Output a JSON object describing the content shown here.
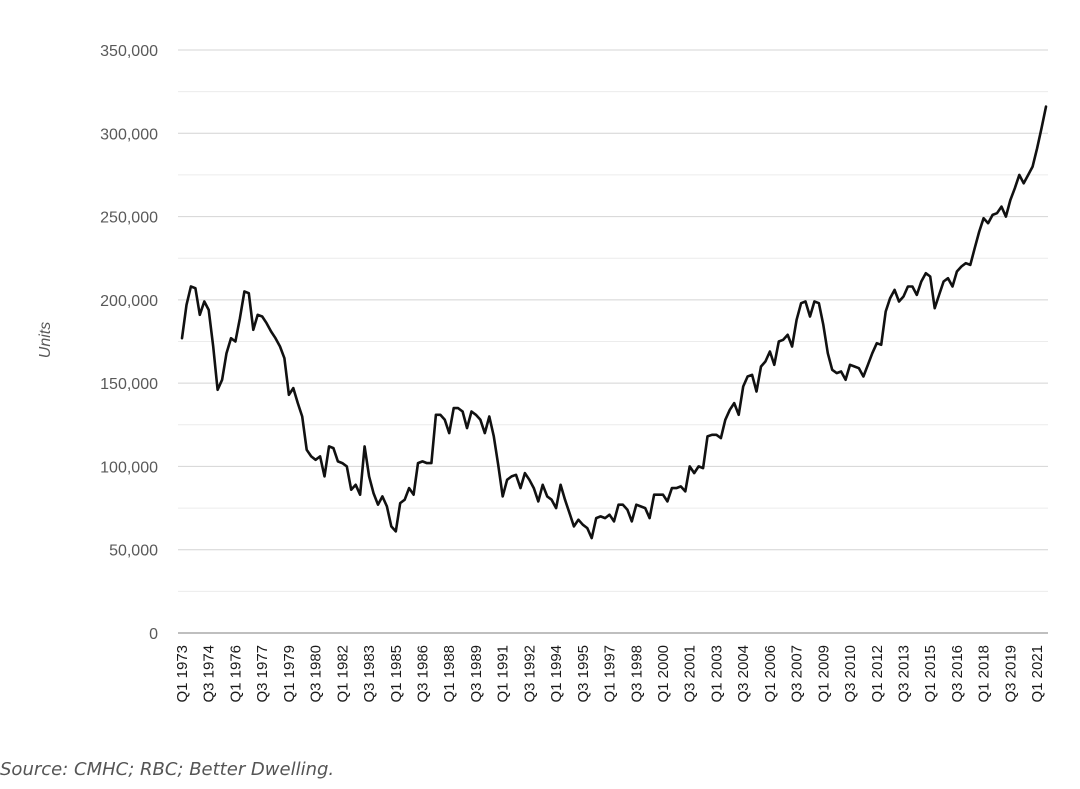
{
  "chart_data": {
    "type": "line",
    "ylabel": "Units",
    "xlabel": "",
    "title": "",
    "ylim": [
      0,
      350000
    ],
    "yticks": [
      0,
      50000,
      100000,
      150000,
      200000,
      250000,
      300000,
      350000
    ],
    "ytick_labels": [
      "0",
      "50,000",
      "100,000",
      "150,000",
      "200,000",
      "250,000",
      "300,000",
      "350,000"
    ],
    "minor_gridlines": true,
    "grid": true,
    "legend": "none",
    "line_color": "#111111",
    "x_tick_labels": [
      "Q1 1973",
      "Q3 1974",
      "Q1 1976",
      "Q3 1977",
      "Q1 1979",
      "Q3 1980",
      "Q1 1982",
      "Q3 1983",
      "Q1 1985",
      "Q3 1986",
      "Q1 1988",
      "Q3 1989",
      "Q1 1991",
      "Q3 1992",
      "Q1 1994",
      "Q3 1995",
      "Q1 1997",
      "Q3 1998",
      "Q1 2000",
      "Q3 2001",
      "Q1 2003",
      "Q3 2004",
      "Q1 2006",
      "Q3 2007",
      "Q1 2009",
      "Q3 2010",
      "Q1 2012",
      "Q3 2013",
      "Q1 2015",
      "Q3 2016",
      "Q1 2018",
      "Q3 2019",
      "Q1 2021"
    ],
    "x_tick_quarter_index": [
      0,
      6,
      12,
      18,
      24,
      30,
      36,
      42,
      48,
      54,
      60,
      66,
      72,
      78,
      84,
      90,
      96,
      102,
      108,
      114,
      120,
      126,
      132,
      138,
      144,
      150,
      156,
      162,
      168,
      174,
      180,
      186,
      192
    ],
    "x_start": "Q1 1973",
    "values": [
      177000,
      197000,
      208000,
      207000,
      191000,
      199000,
      194000,
      172000,
      146000,
      152000,
      168000,
      177000,
      175000,
      189000,
      205000,
      204000,
      182000,
      191000,
      190000,
      186000,
      181000,
      177000,
      172000,
      165000,
      143000,
      147000,
      138000,
      130000,
      110000,
      106000,
      104000,
      106000,
      94000,
      112000,
      111000,
      103000,
      102000,
      100000,
      86000,
      89000,
      83000,
      112000,
      94000,
      84000,
      77000,
      82000,
      76000,
      64000,
      61000,
      78000,
      80000,
      87000,
      83000,
      102000,
      103000,
      102000,
      102000,
      131000,
      131000,
      128000,
      120000,
      135000,
      135000,
      133000,
      123000,
      133000,
      131000,
      128000,
      120000,
      130000,
      118000,
      101000,
      82000,
      92000,
      94000,
      95000,
      87000,
      96000,
      92000,
      87000,
      79000,
      89000,
      82000,
      80000,
      75000,
      89000,
      80000,
      72000,
      64000,
      68000,
      65000,
      63000,
      57000,
      69000,
      70000,
      69000,
      71000,
      67000,
      77000,
      77000,
      74000,
      67000,
      77000,
      76000,
      75000,
      69000,
      83000,
      83000,
      83000,
      79000,
      87000,
      87000,
      88000,
      85000,
      100000,
      96000,
      100000,
      99000,
      118000,
      119000,
      119000,
      117000,
      128000,
      134000,
      138000,
      131000,
      148000,
      154000,
      155000,
      145000,
      160000,
      163000,
      169000,
      161000,
      175000,
      176000,
      179000,
      172000,
      188000,
      198000,
      199000,
      190000,
      199000,
      198000,
      185000,
      168000,
      158000,
      156000,
      157000,
      152000,
      161000,
      160000,
      159000,
      154000,
      161000,
      168000,
      174000,
      173000,
      193000,
      201000,
      206000,
      199000,
      202000,
      208000,
      208000,
      203000,
      211000,
      216000,
      214000,
      195000,
      203000,
      211000,
      213000,
      208000,
      217000,
      220000,
      222000,
      221000,
      231000,
      241000,
      249000,
      246000,
      251000,
      252000,
      256000,
      250000,
      260000,
      267000,
      275000,
      270000,
      275000,
      280000,
      291000,
      303000,
      316000
    ]
  },
  "source": "Source: CMHC; RBC; Better Dwelling."
}
